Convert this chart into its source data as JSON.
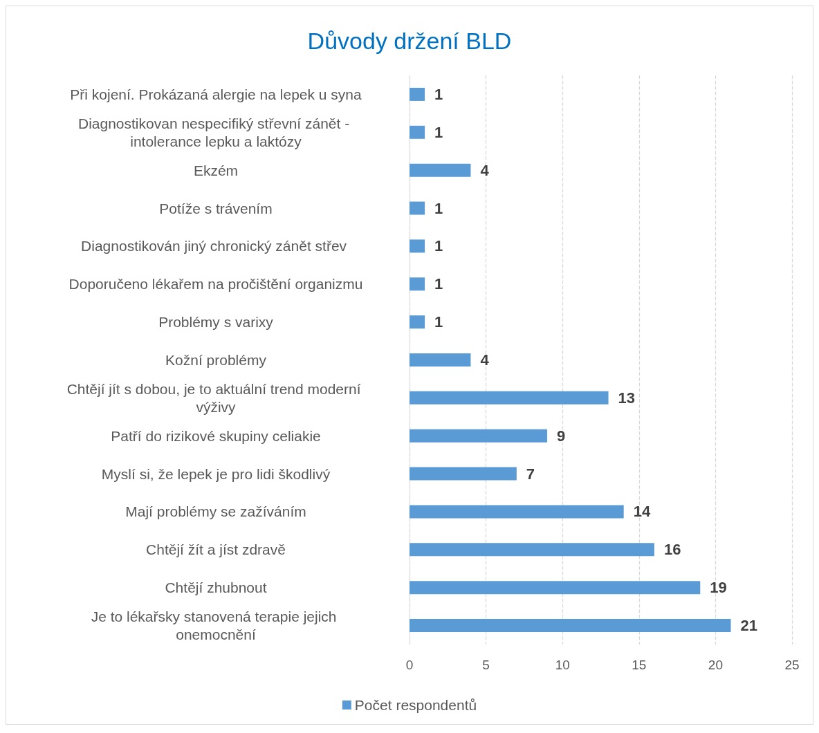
{
  "chart_data": {
    "type": "bar",
    "orientation": "horizontal",
    "title": "Důvody držení BLD",
    "categories": [
      "Při kojení. Prokázaná alergie na lepek u syna",
      "Diagnostikovan nespecifiký střevní zánět - intolerance lepku a laktózy",
      "Ekzém",
      "Potíže s trávením",
      "Diagnostikován jiný chronický zánět střev ",
      "Doporučeno lékařem na pročištění organizmu",
      "Problémy s varixy",
      "Kožní problémy",
      "Chtějí jít s dobou, je to aktuální trend moderní výživy",
      "Patří do rizikové skupiny celiakie",
      "Myslí si, že lepek je pro lidi škodlivý",
      "Mají problémy se zažíváním",
      "Chtějí žít a jíst zdravě",
      "Chtějí zhubnout",
      "Je to lékařsky stanovená terapie jejich onemocnění"
    ],
    "series": [
      {
        "name": "Počet respondentů",
        "color": "#5b9bd5",
        "values": [
          1,
          1,
          4,
          1,
          1,
          1,
          1,
          4,
          13,
          9,
          7,
          14,
          16,
          19,
          21
        ]
      }
    ],
    "xlim": [
      0,
      25
    ],
    "xticks": [
      0,
      5,
      10,
      15,
      20,
      25
    ],
    "grid": "x",
    "legend": "bottom",
    "data_labels": true
  }
}
